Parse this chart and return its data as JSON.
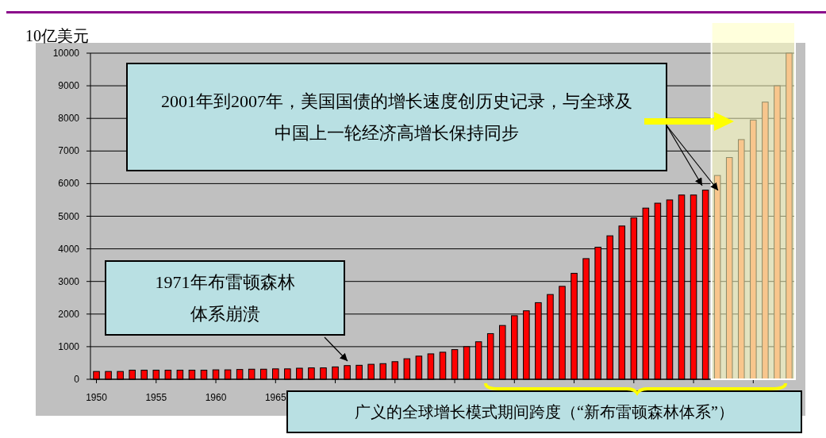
{
  "chart_data": {
    "type": "bar",
    "ylabel": "10亿美元",
    "x": [
      1950,
      1951,
      1952,
      1953,
      1954,
      1955,
      1956,
      1957,
      1958,
      1959,
      1960,
      1961,
      1962,
      1963,
      1964,
      1965,
      1966,
      1967,
      1968,
      1969,
      1970,
      1971,
      1972,
      1973,
      1974,
      1975,
      1976,
      1977,
      1978,
      1979,
      1980,
      1981,
      1982,
      1983,
      1984,
      1985,
      1986,
      1987,
      1988,
      1989,
      1990,
      1991,
      1992,
      1993,
      1994,
      1995,
      1996,
      1997,
      1998,
      1999,
      2000,
      2001,
      2002,
      2003,
      2004,
      2005,
      2006,
      2007,
      2008
    ],
    "values": [
      240,
      240,
      240,
      280,
      280,
      280,
      280,
      280,
      280,
      280,
      290,
      290,
      300,
      310,
      310,
      320,
      320,
      340,
      350,
      350,
      380,
      420,
      430,
      460,
      480,
      540,
      630,
      710,
      780,
      830,
      910,
      1000,
      1150,
      1400,
      1650,
      1950,
      2100,
      2350,
      2600,
      2850,
      3250,
      3700,
      4050,
      4400,
      4700,
      4950,
      5250,
      5400,
      5500,
      5650,
      5650,
      5800,
      6250,
      6800,
      7350,
      7950,
      8500,
      9000,
      10000
    ],
    "colors": [
      "#ff0000",
      "#ff0000",
      "#ff0000",
      "#ff0000",
      "#ff0000",
      "#ff0000",
      "#ff0000",
      "#ff0000",
      "#ff0000",
      "#ff0000",
      "#ff0000",
      "#ff0000",
      "#ff0000",
      "#ff0000",
      "#ff0000",
      "#ff0000",
      "#ff0000",
      "#ff0000",
      "#ff0000",
      "#ff0000",
      "#ff0000",
      "#ff0000",
      "#ff0000",
      "#ff0000",
      "#ff0000",
      "#ff0000",
      "#ff0000",
      "#ff0000",
      "#ff0000",
      "#ff0000",
      "#ff0000",
      "#ff0000",
      "#ff0000",
      "#ff0000",
      "#ff0000",
      "#ff0000",
      "#ff0000",
      "#ff0000",
      "#ff0000",
      "#ff0000",
      "#ff0000",
      "#ff0000",
      "#ff0000",
      "#ff0000",
      "#ff0000",
      "#ff0000",
      "#ff0000",
      "#ff0000",
      "#ff0000",
      "#ff0000",
      "#ff0000",
      "#ff0000",
      "#f08050",
      "#f08050",
      "#f08050",
      "#f08050",
      "#f08050",
      "#f08050",
      "#f08050"
    ],
    "xlim": [
      1949.5,
      2008.5
    ],
    "xticks": [
      1950,
      1955,
      1960,
      1965,
      {
        "value": 1970,
        "label": null
      },
      {
        "value": 1975,
        "label": null
      },
      {
        "value": 1980,
        "label": null
      },
      {
        "value": 1985,
        "label": null
      },
      {
        "value": 1990,
        "label": null
      },
      {
        "value": 1995,
        "label": null
      },
      {
        "value": 2000,
        "label": null
      },
      {
        "value": 2005,
        "label": null
      }
    ],
    "ylim": [
      0,
      10000
    ],
    "yticks": [
      0,
      1000,
      2000,
      3000,
      4000,
      5000,
      6000,
      7000,
      8000,
      9000,
      10000
    ],
    "grid": "y",
    "bands": [
      {
        "axis": "x",
        "from": 2001.5,
        "to": 2008.5,
        "color": "#ffffc0"
      }
    ],
    "annotations": [
      "2001年到2007年，美国国债的增长速度创历史记录，与全球及中国上一轮经济高增长保持同步",
      "1971年布雷顿森林体系崩溃",
      "广义的全球增长模式期间跨度（“新布雷顿森林体系”）"
    ]
  }
}
